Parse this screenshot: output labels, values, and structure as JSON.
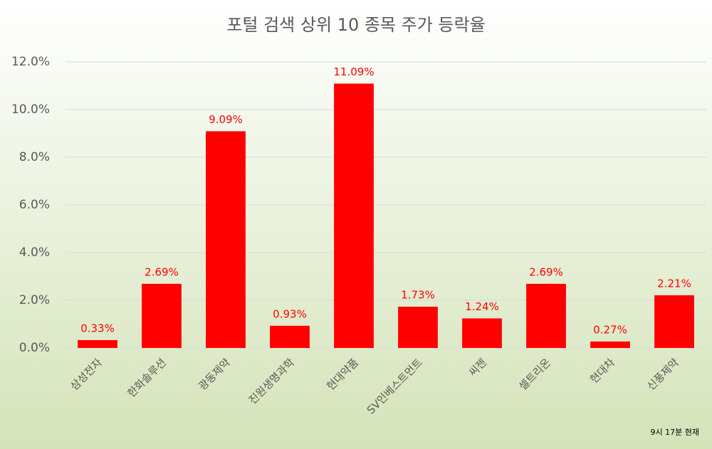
{
  "chart_data": {
    "type": "bar",
    "title": "포털 검색 상위 10 종목 주가 등락율",
    "categories": [
      "삼성전자",
      "한화솔루션",
      "광동제약",
      "진원생명과학",
      "현대약품",
      "SV인베스트먼트",
      "씨젠",
      "셀트리온",
      "현대차",
      "신풍제약"
    ],
    "values": [
      0.33,
      2.69,
      9.09,
      0.93,
      11.09,
      1.73,
      1.24,
      2.69,
      0.27,
      2.21
    ],
    "value_labels": [
      "0.33%",
      "2.69%",
      "9.09%",
      "0.93%",
      "11.09%",
      "1.73%",
      "1.24%",
      "2.69%",
      "0.27%",
      "2.21%"
    ],
    "color": "#ff0000",
    "ylim": [
      0,
      12
    ],
    "yticks": [
      {
        "value": 0,
        "label": "0.0%"
      },
      {
        "value": 2,
        "label": "2.0%"
      },
      {
        "value": 4,
        "label": "4.0%"
      },
      {
        "value": 6,
        "label": "6.0%"
      },
      {
        "value": 8,
        "label": "8.0%"
      },
      {
        "value": 10,
        "label": "10.0%"
      },
      {
        "value": 12,
        "label": "12.0%"
      }
    ],
    "grid": true,
    "note": "9시 17분 현재"
  }
}
